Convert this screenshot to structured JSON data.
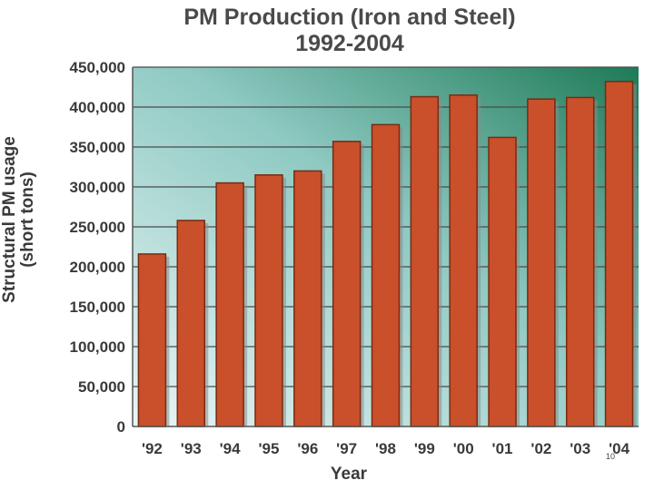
{
  "chart_data": {
    "type": "bar",
    "title": "PM Production (Iron and Steel)",
    "subtitle": "1992-2004",
    "xlabel": "Year",
    "ylabel": "Structural PM usage",
    "ylabel_sub": "(short tons)",
    "categories": [
      "'92",
      "'93",
      "'94",
      "'95",
      "'96",
      "'97",
      "'98",
      "'99",
      "'00",
      "'01",
      "'02",
      "'03",
      "'04"
    ],
    "values": [
      216000,
      258000,
      305000,
      315000,
      320000,
      357000,
      378000,
      413000,
      415000,
      362000,
      410000,
      412000,
      432000
    ],
    "ylim": [
      0,
      450000
    ],
    "yticks": [
      "0",
      "50,000",
      "100,000",
      "150,000",
      "200,000",
      "250,000",
      "300,000",
      "350,000",
      "400,000",
      "450,000"
    ],
    "grid": true,
    "legend": "none",
    "colors": {
      "bar_fill": "#c9502a",
      "bar_edge": "#7a2a12",
      "bar_shadow": "#8a8a8a",
      "bg_left": "#eaf6f6",
      "bg_mid": "#8ec9c2",
      "bg_right": "#1d7a56"
    }
  },
  "page_number": "10"
}
